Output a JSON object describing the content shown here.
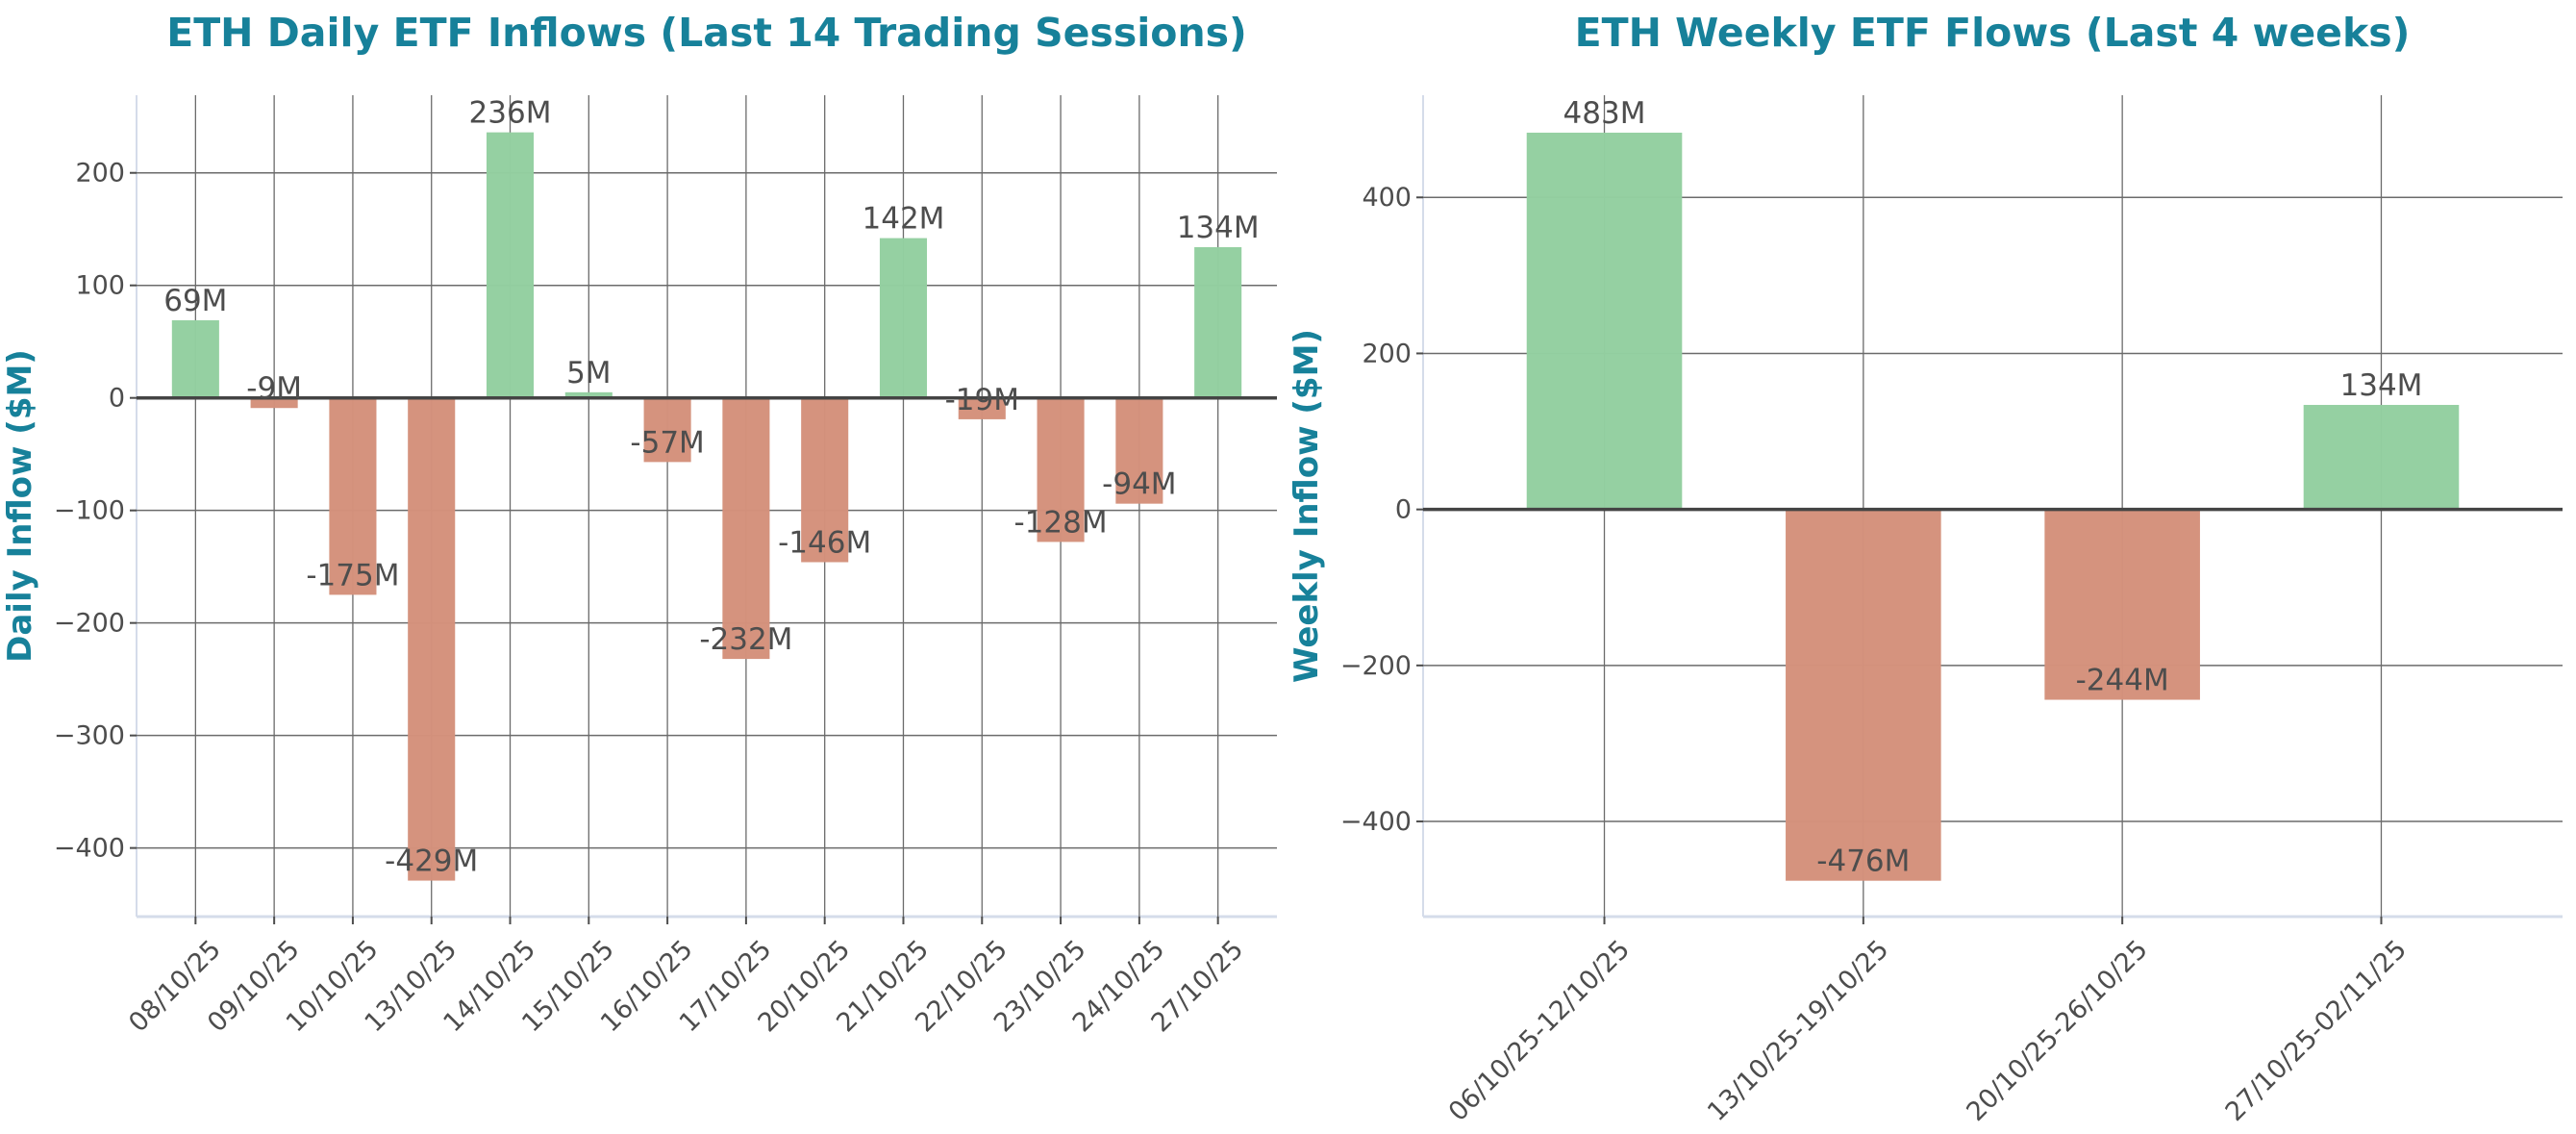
{
  "colors": {
    "positive": "#93cfa0",
    "negative": "#d4917b",
    "title": "#17819a",
    "text": "#4d4d4d",
    "grid": "#6b6b6b",
    "zero_line": "#444444",
    "spine": "#d5dcea"
  },
  "chart_data": [
    {
      "type": "bar",
      "title": "ETH Daily ETF Inflows (Last 14 Trading Sessions)",
      "xlabel": "",
      "ylabel": "Daily Inflow ($M)",
      "categories": [
        "08/10/25",
        "09/10/25",
        "10/10/25",
        "13/10/25",
        "14/10/25",
        "15/10/25",
        "16/10/25",
        "17/10/25",
        "20/10/25",
        "21/10/25",
        "22/10/25",
        "23/10/25",
        "24/10/25",
        "27/10/25"
      ],
      "values": [
        69,
        -9,
        -175,
        -429,
        236,
        5,
        -57,
        -232,
        -146,
        142,
        -19,
        -128,
        -94,
        134
      ],
      "data_labels": [
        "69M",
        "-9M",
        "-175M",
        "-429M",
        "236M",
        "5M",
        "-57M",
        "-232M",
        "-146M",
        "142M",
        "-19M",
        "-128M",
        "-94M",
        "134M"
      ],
      "yticks": [
        200,
        100,
        0,
        -100,
        -200,
        -300,
        -400
      ],
      "ytick_labels": [
        "200",
        "100",
        "0",
        "−100",
        "−200",
        "−300",
        "−400"
      ],
      "ylim": [
        -461,
        269
      ],
      "grid": true,
      "color_rule": "green if positive, red if negative"
    },
    {
      "type": "bar",
      "title": "ETH Weekly ETF Flows (Last 4 weeks)",
      "xlabel": "",
      "ylabel": "Weekly Inflow ($M)",
      "categories": [
        "06/10/25-12/10/25",
        "13/10/25-19/10/25",
        "20/10/25-26/10/25",
        "27/10/25-02/11/25"
      ],
      "values": [
        483,
        -476,
        -244,
        134
      ],
      "data_labels": [
        "483M",
        "-476M",
        "-244M",
        "134M"
      ],
      "yticks": [
        400,
        200,
        0,
        -200,
        -400
      ],
      "ytick_labels": [
        "400",
        "200",
        "0",
        "−200",
        "−400"
      ],
      "ylim": [
        -522,
        531
      ],
      "grid": true,
      "color_rule": "green if positive, red if negative"
    }
  ]
}
